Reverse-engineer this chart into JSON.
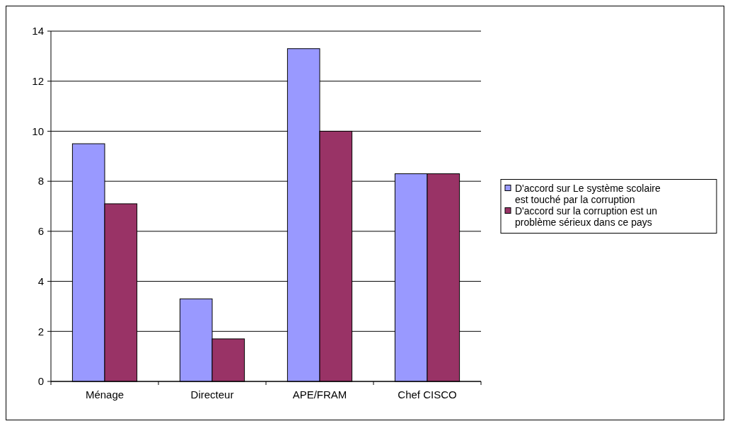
{
  "chart_data": {
    "type": "bar",
    "categories": [
      "Ménage",
      "Directeur",
      "APE/FRAM",
      "Chef CISCO"
    ],
    "series": [
      {
        "name": "D'accord sur Le système scolaire est touché par la corruption",
        "color": "#9999ff",
        "values": [
          9.5,
          3.3,
          13.3,
          8.3
        ]
      },
      {
        "name": "D'accord sur la corruption est un problème sérieux dans ce pays",
        "color": "#993366",
        "values": [
          7.1,
          1.7,
          10.0,
          8.3
        ]
      }
    ],
    "ylim": [
      0,
      14
    ],
    "yticks": [
      0,
      2,
      4,
      6,
      8,
      10,
      12,
      14
    ],
    "grid": "y",
    "legend": "right"
  }
}
